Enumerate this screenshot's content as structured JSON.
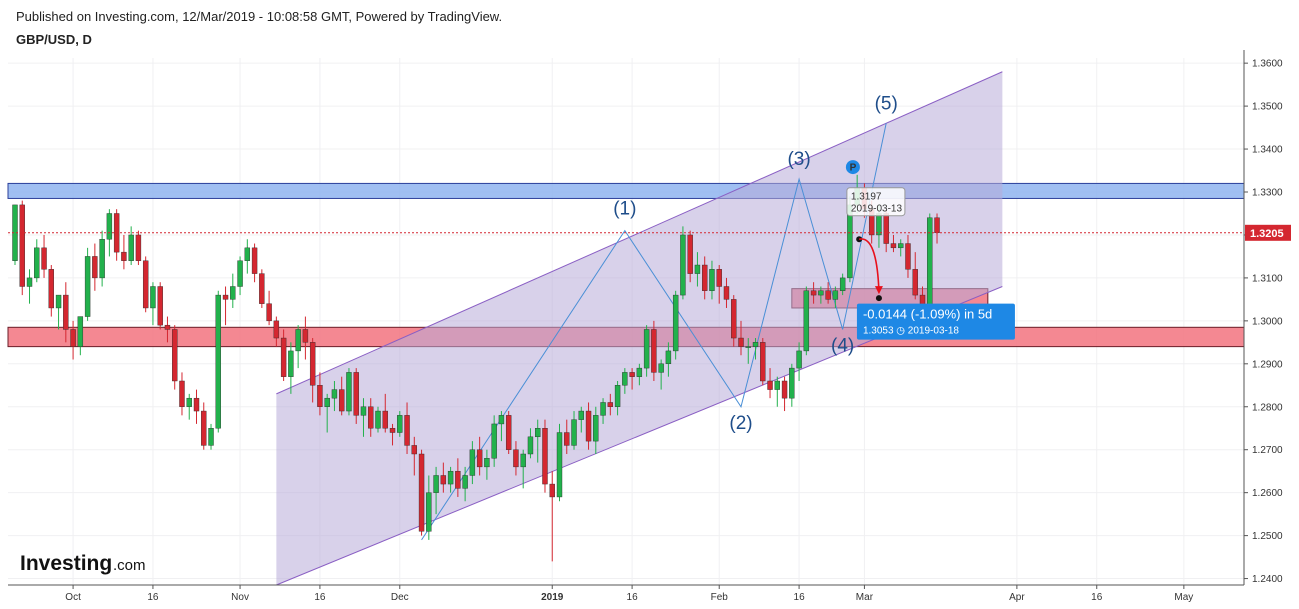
{
  "header": {
    "published": "Published on Investing.com, 12/Mar/2019 - 10:08:58 GMT, Powered by TradingView.",
    "symbol": "GBP/USD, D"
  },
  "logo": {
    "brand": "Investing",
    "suffix": ".com"
  },
  "colors": {
    "bull": "#22b14c",
    "bear": "#d42730",
    "channel_fill": "#b8acd8",
    "channel_line": "#8a5fc4",
    "wave_line": "#4a8fd6",
    "resistance_zone": "#8fb4f0",
    "support_zone": "#f2737f",
    "price_line": "#d42730",
    "projection_arrow": "#e8101c",
    "label_box": "#1e88e5"
  },
  "price_label": "1.3205",
  "tooltip": {
    "price": "1.3197",
    "date": "2019-03-13"
  },
  "projection": {
    "change": "-0.0144 (-1.09%) in 5d",
    "target": "1.3053",
    "date": "2019-03-18"
  },
  "marker_p": "P",
  "chart_data": {
    "type": "candlestick",
    "title": "GBP/USD, D",
    "y_range": [
      1.2385,
      1.3612
    ],
    "y_ticks": [
      "1.3600",
      "1.3500",
      "1.3400",
      "1.3300",
      "1.3200",
      "1.3100",
      "1.3000",
      "1.2900",
      "1.2800",
      "1.2700",
      "1.2600",
      "1.2500",
      "1.2400"
    ],
    "x_ticks": [
      {
        "label": "Oct",
        "bar": 8
      },
      {
        "label": "16",
        "bar": 19
      },
      {
        "label": "Nov",
        "bar": 31
      },
      {
        "label": "16",
        "bar": 42
      },
      {
        "label": "Dec",
        "bar": 53
      },
      {
        "label": "2019",
        "bar": 74
      },
      {
        "label": "16",
        "bar": 85
      },
      {
        "label": "Feb",
        "bar": 97
      },
      {
        "label": "16",
        "bar": 108
      },
      {
        "label": "Mar",
        "bar": 117
      },
      {
        "label": "Apr",
        "bar": 138
      },
      {
        "label": "16",
        "bar": 149
      },
      {
        "label": "May",
        "bar": 161
      }
    ],
    "last_price": 1.3205,
    "candles": [
      [
        1.314,
        1.327,
        1.313,
        1.327
      ],
      [
        1.327,
        1.328,
        1.306,
        1.308
      ],
      [
        1.308,
        1.312,
        1.304,
        1.31
      ],
      [
        1.31,
        1.319,
        1.309,
        1.317
      ],
      [
        1.317,
        1.32,
        1.31,
        1.312
      ],
      [
        1.312,
        1.313,
        1.301,
        1.303
      ],
      [
        1.303,
        1.306,
        1.298,
        1.306
      ],
      [
        1.306,
        1.309,
        1.295,
        1.298
      ],
      [
        1.298,
        1.3,
        1.291,
        1.294
      ],
      [
        1.294,
        1.301,
        1.292,
        1.301
      ],
      [
        1.301,
        1.317,
        1.3,
        1.315
      ],
      [
        1.315,
        1.318,
        1.307,
        1.31
      ],
      [
        1.31,
        1.321,
        1.308,
        1.319
      ],
      [
        1.319,
        1.326,
        1.315,
        1.325
      ],
      [
        1.325,
        1.326,
        1.314,
        1.316
      ],
      [
        1.316,
        1.32,
        1.312,
        1.314
      ],
      [
        1.314,
        1.322,
        1.313,
        1.32
      ],
      [
        1.32,
        1.321,
        1.313,
        1.314
      ],
      [
        1.314,
        1.315,
        1.302,
        1.303
      ],
      [
        1.303,
        1.309,
        1.299,
        1.308
      ],
      [
        1.308,
        1.309,
        1.298,
        1.299
      ],
      [
        1.299,
        1.301,
        1.295,
        1.298
      ],
      [
        1.298,
        1.299,
        1.284,
        1.286
      ],
      [
        1.286,
        1.288,
        1.278,
        1.28
      ],
      [
        1.28,
        1.283,
        1.277,
        1.282
      ],
      [
        1.282,
        1.284,
        1.276,
        1.279
      ],
      [
        1.279,
        1.281,
        1.27,
        1.271
      ],
      [
        1.271,
        1.276,
        1.27,
        1.275
      ],
      [
        1.275,
        1.307,
        1.274,
        1.306
      ],
      [
        1.306,
        1.308,
        1.299,
        1.305
      ],
      [
        1.305,
        1.311,
        1.303,
        1.308
      ],
      [
        1.308,
        1.315,
        1.306,
        1.314
      ],
      [
        1.314,
        1.319,
        1.311,
        1.317
      ],
      [
        1.317,
        1.318,
        1.309,
        1.311
      ],
      [
        1.311,
        1.312,
        1.303,
        1.304
      ],
      [
        1.304,
        1.307,
        1.299,
        1.3
      ],
      [
        1.3,
        1.301,
        1.294,
        1.296
      ],
      [
        1.296,
        1.298,
        1.286,
        1.287
      ],
      [
        1.287,
        1.295,
        1.283,
        1.293
      ],
      [
        1.293,
        1.299,
        1.289,
        1.298
      ],
      [
        1.298,
        1.301,
        1.291,
        1.295
      ],
      [
        1.295,
        1.296,
        1.281,
        1.285
      ],
      [
        1.285,
        1.288,
        1.278,
        1.28
      ],
      [
        1.28,
        1.283,
        1.274,
        1.282
      ],
      [
        1.282,
        1.286,
        1.279,
        1.284
      ],
      [
        1.284,
        1.287,
        1.278,
        1.279
      ],
      [
        1.279,
        1.289,
        1.278,
        1.288
      ],
      [
        1.288,
        1.289,
        1.276,
        1.278
      ],
      [
        1.278,
        1.282,
        1.273,
        1.28
      ],
      [
        1.28,
        1.282,
        1.273,
        1.275
      ],
      [
        1.275,
        1.28,
        1.274,
        1.279
      ],
      [
        1.279,
        1.283,
        1.274,
        1.275
      ],
      [
        1.275,
        1.276,
        1.271,
        1.274
      ],
      [
        1.274,
        1.279,
        1.273,
        1.278
      ],
      [
        1.278,
        1.281,
        1.269,
        1.271
      ],
      [
        1.271,
        1.273,
        1.264,
        1.269
      ],
      [
        1.269,
        1.27,
        1.25,
        1.251
      ],
      [
        1.251,
        1.264,
        1.249,
        1.26
      ],
      [
        1.26,
        1.266,
        1.255,
        1.264
      ],
      [
        1.264,
        1.267,
        1.26,
        1.262
      ],
      [
        1.262,
        1.266,
        1.26,
        1.265
      ],
      [
        1.265,
        1.268,
        1.259,
        1.261
      ],
      [
        1.261,
        1.266,
        1.258,
        1.264
      ],
      [
        1.264,
        1.272,
        1.262,
        1.27
      ],
      [
        1.27,
        1.273,
        1.264,
        1.266
      ],
      [
        1.266,
        1.27,
        1.263,
        1.268
      ],
      [
        1.268,
        1.278,
        1.266,
        1.276
      ],
      [
        1.276,
        1.279,
        1.272,
        1.278
      ],
      [
        1.278,
        1.279,
        1.269,
        1.27
      ],
      [
        1.27,
        1.272,
        1.264,
        1.266
      ],
      [
        1.266,
        1.27,
        1.261,
        1.269
      ],
      [
        1.269,
        1.275,
        1.268,
        1.273
      ],
      [
        1.273,
        1.277,
        1.267,
        1.275
      ],
      [
        1.275,
        1.277,
        1.26,
        1.262
      ],
      [
        1.262,
        1.265,
        1.244,
        1.259
      ],
      [
        1.259,
        1.276,
        1.258,
        1.274
      ],
      [
        1.274,
        1.277,
        1.269,
        1.271
      ],
      [
        1.271,
        1.279,
        1.27,
        1.277
      ],
      [
        1.277,
        1.28,
        1.274,
        1.279
      ],
      [
        1.279,
        1.281,
        1.27,
        1.272
      ],
      [
        1.272,
        1.28,
        1.269,
        1.278
      ],
      [
        1.278,
        1.282,
        1.276,
        1.281
      ],
      [
        1.281,
        1.283,
        1.278,
        1.28
      ],
      [
        1.28,
        1.286,
        1.278,
        1.285
      ],
      [
        1.285,
        1.289,
        1.283,
        1.288
      ],
      [
        1.288,
        1.289,
        1.284,
        1.287
      ],
      [
        1.287,
        1.29,
        1.285,
        1.289
      ],
      [
        1.289,
        1.299,
        1.287,
        1.298
      ],
      [
        1.298,
        1.3,
        1.286,
        1.288
      ],
      [
        1.288,
        1.291,
        1.284,
        1.29
      ],
      [
        1.29,
        1.295,
        1.287,
        1.293
      ],
      [
        1.293,
        1.307,
        1.291,
        1.306
      ],
      [
        1.306,
        1.322,
        1.305,
        1.32
      ],
      [
        1.32,
        1.321,
        1.309,
        1.311
      ],
      [
        1.311,
        1.316,
        1.308,
        1.313
      ],
      [
        1.313,
        1.315,
        1.305,
        1.307
      ],
      [
        1.307,
        1.314,
        1.305,
        1.312
      ],
      [
        1.312,
        1.313,
        1.304,
        1.308
      ],
      [
        1.308,
        1.31,
        1.303,
        1.305
      ],
      [
        1.305,
        1.306,
        1.294,
        1.296
      ],
      [
        1.296,
        1.3,
        1.292,
        1.294
      ],
      [
        1.294,
        1.296,
        1.29,
        1.294
      ],
      [
        1.294,
        1.296,
        1.291,
        1.295
      ],
      [
        1.295,
        1.296,
        1.285,
        1.286
      ],
      [
        1.286,
        1.289,
        1.282,
        1.284
      ],
      [
        1.284,
        1.287,
        1.28,
        1.286
      ],
      [
        1.286,
        1.287,
        1.279,
        1.282
      ],
      [
        1.282,
        1.29,
        1.28,
        1.289
      ],
      [
        1.289,
        1.295,
        1.286,
        1.293
      ],
      [
        1.293,
        1.308,
        1.292,
        1.307
      ],
      [
        1.307,
        1.309,
        1.304,
        1.306
      ],
      [
        1.306,
        1.308,
        1.304,
        1.307
      ],
      [
        1.307,
        1.309,
        1.304,
        1.305
      ],
      [
        1.305,
        1.308,
        1.303,
        1.307
      ],
      [
        1.307,
        1.311,
        1.306,
        1.31
      ],
      [
        1.31,
        1.329,
        1.309,
        1.327
      ],
      [
        1.327,
        1.334,
        1.325,
        1.331
      ],
      [
        1.331,
        1.332,
        1.324,
        1.326
      ],
      [
        1.326,
        1.328,
        1.318,
        1.32
      ],
      [
        1.32,
        1.327,
        1.317,
        1.325
      ],
      [
        1.325,
        1.326,
        1.316,
        1.318
      ],
      [
        1.318,
        1.32,
        1.316,
        1.317
      ],
      [
        1.317,
        1.319,
        1.315,
        1.318
      ],
      [
        1.318,
        1.32,
        1.31,
        1.312
      ],
      [
        1.312,
        1.316,
        1.305,
        1.306
      ],
      [
        1.306,
        1.308,
        1.299,
        1.3
      ],
      [
        1.3,
        1.325,
        1.298,
        1.324
      ],
      [
        1.324,
        1.325,
        1.318,
        1.3205
      ]
    ],
    "channel": {
      "upper": [
        [
          36,
          1.283
        ],
        [
          136,
          1.358
        ]
      ],
      "lower": [
        [
          36,
          1.2385
        ],
        [
          136,
          1.308
        ]
      ]
    },
    "zones": [
      {
        "name": "resistance",
        "from": 1.3285,
        "to": 1.332,
        "color": "#8fb4f0"
      },
      {
        "name": "support",
        "from": 1.294,
        "to": 1.2985,
        "color": "#f2737f"
      },
      {
        "name": "target",
        "from": 1.303,
        "to": 1.3075,
        "color": "#f2737f",
        "start_bar": 107,
        "end_bar": 134
      }
    ],
    "waves": [
      {
        "label": "(1)",
        "bar": 84,
        "price": 1.321
      },
      {
        "label": "(2)",
        "bar": 100,
        "price": 1.28
      },
      {
        "label": "(3)",
        "bar": 108,
        "price": 1.333
      },
      {
        "label": "(4)",
        "bar": 114,
        "price": 1.298
      },
      {
        "label": "(5)",
        "bar": 120,
        "price": 1.346
      }
    ],
    "wave_start": {
      "bar": 56,
      "price": 1.249
    },
    "tooltip_bar": 115,
    "projection_bar": 119
  }
}
